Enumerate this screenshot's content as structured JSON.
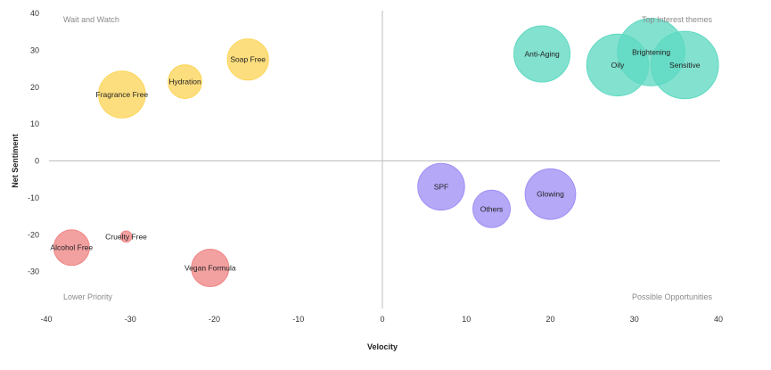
{
  "chart_data": {
    "type": "scatter",
    "xlabel": "Velocity",
    "ylabel": "Net Sentiment",
    "xlim": [
      -40,
      40
    ],
    "ylim": [
      -40,
      40
    ],
    "x_ticks": [
      "-40",
      "-30",
      "-20",
      "-10",
      "0",
      "10",
      "20",
      "30",
      "40"
    ],
    "y_ticks": [
      "40",
      "30",
      "20",
      "10",
      "0",
      "-10",
      "-20",
      "-30"
    ],
    "quadrant_labels": {
      "top_left": "Wait and Watch",
      "top_right": "Top Interest themes",
      "bottom_left": "Lower Priority",
      "bottom_right": "Possible Opportunities"
    },
    "colors": {
      "yellow": "#fcd55a",
      "teal": "#5fd9c2",
      "red": "#ef8585",
      "purple": "#9f8ff5"
    },
    "points": [
      {
        "label": "Soap Free",
        "x": -16,
        "y": 27.5,
        "size": 2.2,
        "color": "yellow"
      },
      {
        "label": "Hydration",
        "x": -23.5,
        "y": 21.5,
        "size": 1.8,
        "color": "yellow"
      },
      {
        "label": "Fragrance Free",
        "x": -31,
        "y": 18,
        "size": 2.5,
        "color": "yellow"
      },
      {
        "label": "Anti-Aging",
        "x": 19,
        "y": 29,
        "size": 3.0,
        "color": "teal"
      },
      {
        "label": "Oily",
        "x": 28,
        "y": 26,
        "size": 3.3,
        "color": "teal"
      },
      {
        "label": "Brightening",
        "x": 32,
        "y": 29.5,
        "size": 3.6,
        "color": "teal"
      },
      {
        "label": "Sensitive",
        "x": 36,
        "y": 26,
        "size": 3.6,
        "color": "teal"
      },
      {
        "label": "SPF",
        "x": 7,
        "y": -7,
        "size": 2.5,
        "color": "purple"
      },
      {
        "label": "Others",
        "x": 13,
        "y": -13,
        "size": 2.0,
        "color": "purple"
      },
      {
        "label": "Glowing",
        "x": 20,
        "y": -9,
        "size": 2.7,
        "color": "purple"
      },
      {
        "label": "Cruelty Free",
        "x": -30.5,
        "y": -20.5,
        "size": 0.6,
        "color": "red"
      },
      {
        "label": "Alcohol Free",
        "x": -37,
        "y": -23.5,
        "size": 1.9,
        "color": "red"
      },
      {
        "label": "Vegan Formula",
        "x": -20.5,
        "y": -29,
        "size": 2.0,
        "color": "red"
      }
    ]
  }
}
